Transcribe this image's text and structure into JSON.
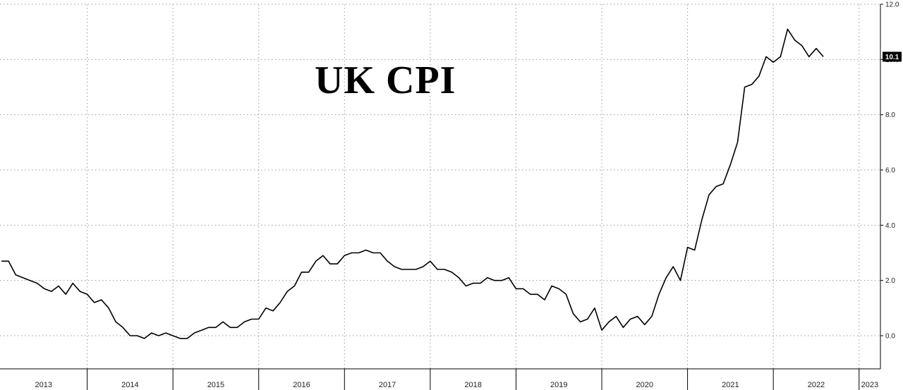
{
  "chart_data": {
    "type": "line",
    "title": "UK CPI",
    "xlabel": "",
    "ylabel": "",
    "ylim": [
      -1.2,
      12.0
    ],
    "yticks": [
      "12.0",
      "10.0",
      "8.0",
      "6.0",
      "4.0",
      "2.0",
      "0.0"
    ],
    "ytick_values": [
      12,
      10,
      8,
      6,
      4,
      2,
      0
    ],
    "year_labels": [
      "2013",
      "2014",
      "2015",
      "2016",
      "2017",
      "2018",
      "2019",
      "2020",
      "2021",
      "2022",
      "2023"
    ],
    "x_start": "2013-01",
    "x_end": "2023-03",
    "grid": true,
    "last_value_label": "10.1",
    "series": [
      {
        "values": [
          2.7,
          2.7,
          2.2,
          2.1,
          2.0,
          1.9,
          1.7,
          1.6,
          1.8,
          1.5,
          1.9,
          1.6,
          1.5,
          1.2,
          1.3,
          1.0,
          0.5,
          0.3,
          0.0,
          0.0,
          -0.1,
          0.1,
          0.0,
          0.1,
          0.0,
          -0.1,
          -0.1,
          0.1,
          0.2,
          0.3,
          0.3,
          0.5,
          0.3,
          0.3,
          0.5,
          0.6,
          0.6,
          1.0,
          0.9,
          1.2,
          1.6,
          1.8,
          2.3,
          2.3,
          2.7,
          2.9,
          2.6,
          2.6,
          2.9,
          3.0,
          3.0,
          3.1,
          3.0,
          3.0,
          2.7,
          2.5,
          2.4,
          2.4,
          2.4,
          2.5,
          2.7,
          2.4,
          2.4,
          2.3,
          2.1,
          1.8,
          1.9,
          1.9,
          2.1,
          2.0,
          2.0,
          2.1,
          1.7,
          1.7,
          1.5,
          1.5,
          1.3,
          1.8,
          1.7,
          1.5,
          0.8,
          0.5,
          0.6,
          1.0,
          0.2,
          0.5,
          0.7,
          0.3,
          0.6,
          0.7,
          0.4,
          0.7,
          1.5,
          2.1,
          2.5,
          2.0,
          3.2,
          3.1,
          4.2,
          5.1,
          5.4,
          5.5,
          6.2,
          7.0,
          9.0,
          9.1,
          9.4,
          10.1,
          9.9,
          10.1,
          11.1,
          10.7,
          10.5,
          10.1,
          10.4,
          10.1
        ]
      }
    ]
  }
}
